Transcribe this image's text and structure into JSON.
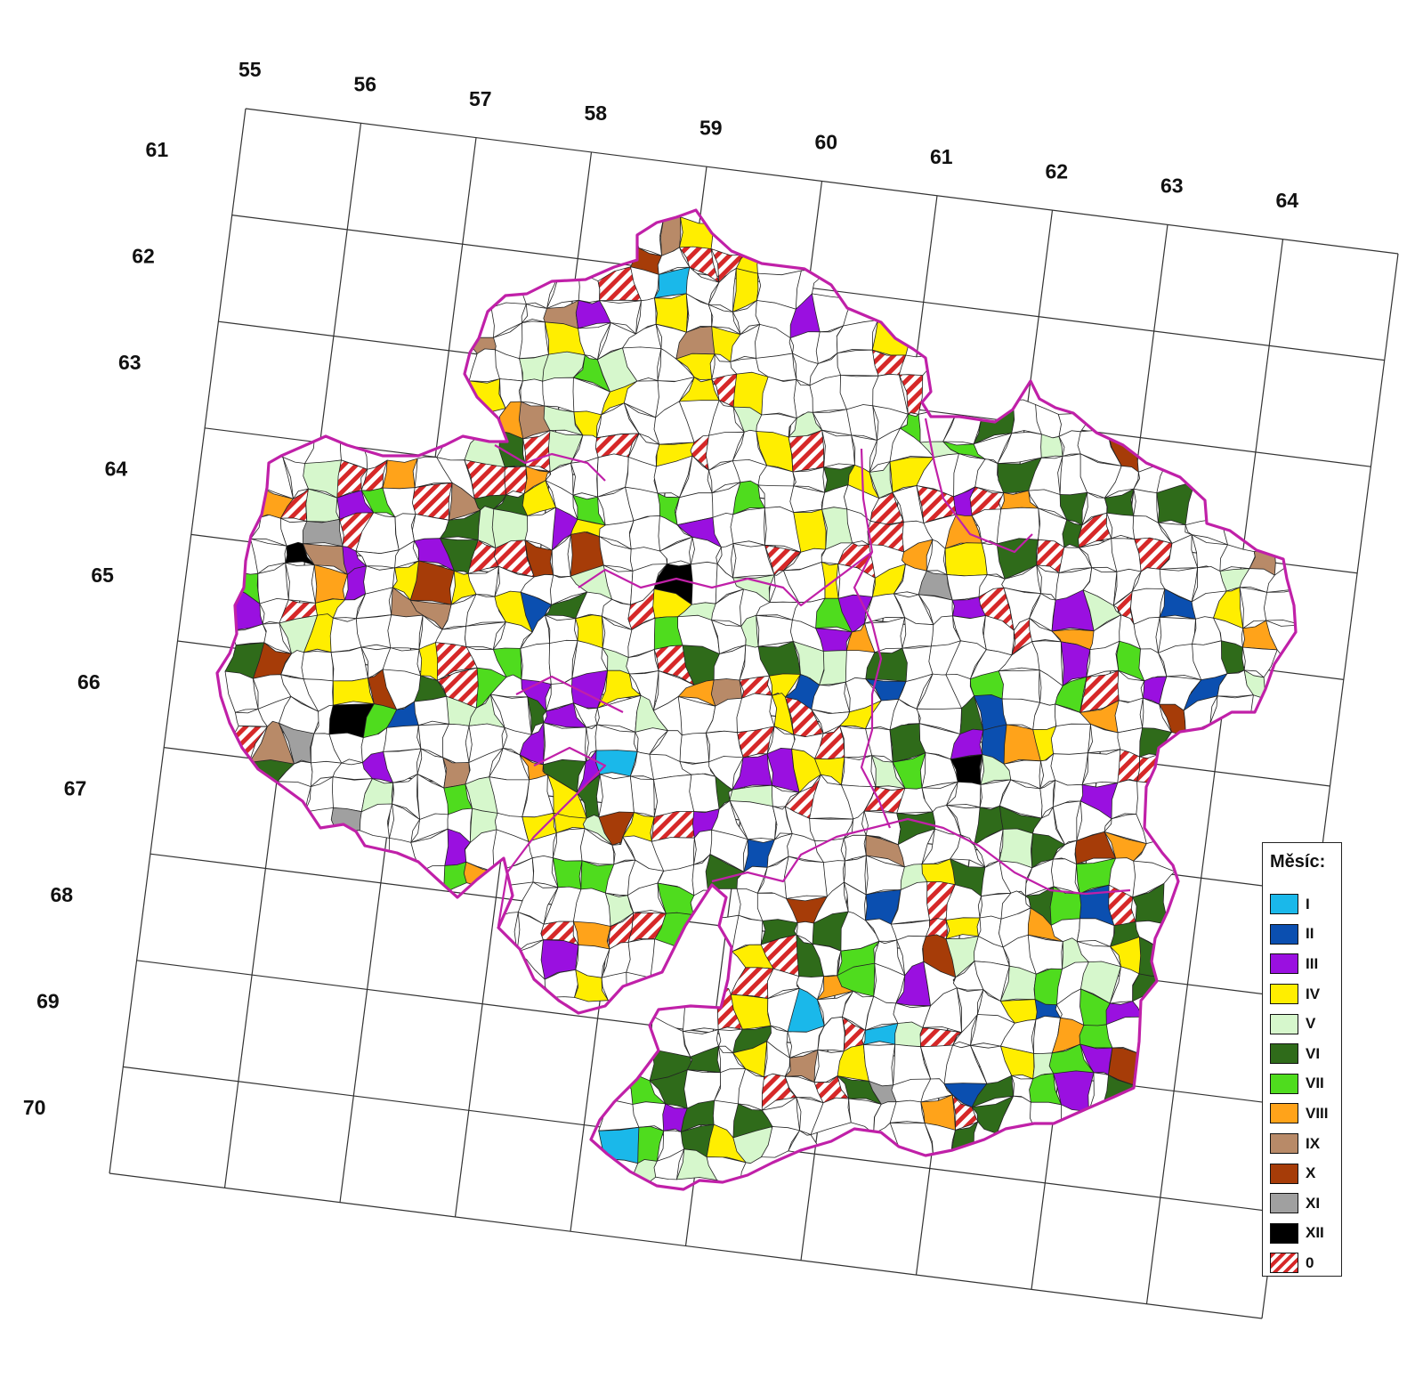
{
  "map": {
    "column_labels": [
      "55",
      "56",
      "57",
      "58",
      "59",
      "60",
      "61",
      "62",
      "63",
      "64"
    ],
    "row_labels": [
      "61",
      "62",
      "63",
      "64",
      "65",
      "66",
      "67",
      "68",
      "69",
      "70"
    ],
    "region_border_color": "#c020a8",
    "district_border_color": "#222222"
  },
  "legend": {
    "title": "Měsíc:",
    "items": [
      {
        "label": "I",
        "color": "#1ab8ea"
      },
      {
        "label": "II",
        "color": "#0b4fb0"
      },
      {
        "label": "III",
        "color": "#9a10e0"
      },
      {
        "label": "IV",
        "color": "#ffee00"
      },
      {
        "label": "V",
        "color": "#d6f7cc"
      },
      {
        "label": "VI",
        "color": "#2f6b1a"
      },
      {
        "label": "VII",
        "color": "#4fdc1e"
      },
      {
        "label": "VIII",
        "color": "#ffa31a"
      },
      {
        "label": "IX",
        "color": "#b88a68"
      },
      {
        "label": "X",
        "color": "#a63c08"
      },
      {
        "label": "XI",
        "color": "#a0a0a0"
      },
      {
        "label": "XII",
        "color": "#000000"
      },
      {
        "label": "0",
        "color": "hatch"
      }
    ]
  }
}
